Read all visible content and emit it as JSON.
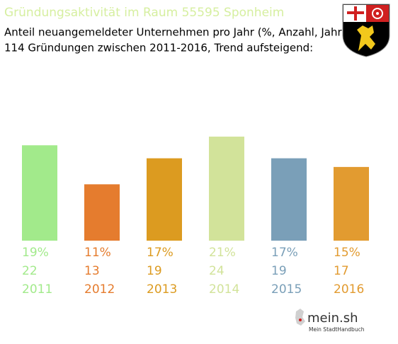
{
  "chart_data": {
    "type": "bar",
    "title": "Gründungsaktivität im Raum 55595 Sponheim",
    "subtitle": [
      "Anteil neuangemeldeter Unternehmen pro Jahr (%, Anzahl, Jahr)",
      "114 Gründungen zwischen 2011-2016, Trend aufsteigend:"
    ],
    "categories": [
      "2011",
      "2012",
      "2013",
      "2014",
      "2015",
      "2016"
    ],
    "values": [
      22,
      13,
      19,
      24,
      19,
      17
    ],
    "shares": [
      {
        "value": 19,
        "label": "19%"
      },
      {
        "value": 11,
        "label": "11%"
      },
      {
        "value": 17,
        "label": "17%"
      },
      {
        "value": 21,
        "label": "21%"
      },
      {
        "value": 17,
        "label": "17%"
      },
      {
        "value": 15,
        "label": "15%"
      }
    ],
    "colors": [
      "#a2ea8b",
      "#e57c2e",
      "#dc9b20",
      "#d2e39a",
      "#7a9fb8",
      "#e29b30"
    ],
    "title_color": "#d6efa0"
  },
  "branding": {
    "name": "mein.sh",
    "tagline": "Mein StadtHandbuch"
  }
}
